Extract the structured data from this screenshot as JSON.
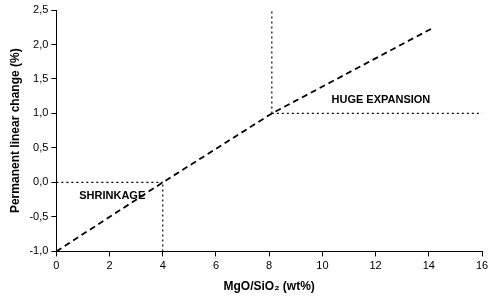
{
  "chart_data": {
    "type": "line",
    "x_label": "MgO/SiO₂ (wt%)",
    "y_label": "Permanent linear change (%)",
    "xlim": [
      0,
      16
    ],
    "xticks": [
      0,
      2,
      4,
      6,
      8,
      10,
      12,
      14,
      16
    ],
    "ylim": [
      -1,
      2.5
    ],
    "yticks": [
      {
        "value": -1,
        "label": "-1,0"
      },
      {
        "value": -0.5,
        "label": "-0,5"
      },
      {
        "value": 0,
        "label": "0,0"
      },
      {
        "value": 0.5,
        "label": "0,5"
      },
      {
        "value": 1,
        "label": "1,0"
      },
      {
        "value": 1.5,
        "label": "1,5"
      },
      {
        "value": 2,
        "label": "2,0"
      },
      {
        "value": 2.5,
        "label": "2,5"
      }
    ],
    "grid": false,
    "series": [
      {
        "color": "#000000",
        "line_style": "dashed",
        "x": [
          0,
          4,
          8.1,
          14.2
        ],
        "values": [
          -1,
          0,
          1,
          2.25
        ]
      },
      {
        "color": "#000000",
        "line_style": "dotted",
        "x": [
          0,
          4
        ],
        "values": [
          0,
          0
        ]
      },
      {
        "color": "#000000",
        "line_style": "dotted",
        "x": [
          4,
          4
        ],
        "values": [
          -1,
          0
        ]
      },
      {
        "color": "#000000",
        "line_style": "dotted",
        "x": [
          8.1,
          8.1
        ],
        "values": [
          1,
          2.5
        ]
      },
      {
        "color": "#000000",
        "line_style": "dotted",
        "x": [
          8.1,
          16
        ],
        "values": [
          1,
          1
        ]
      }
    ],
    "annotations": [
      {
        "text": "SHRINKAGE",
        "x": 2.1,
        "y": -0.2
      },
      {
        "text": "HUGE EXPANSION",
        "x": 12.2,
        "y": 1.2
      }
    ]
  }
}
